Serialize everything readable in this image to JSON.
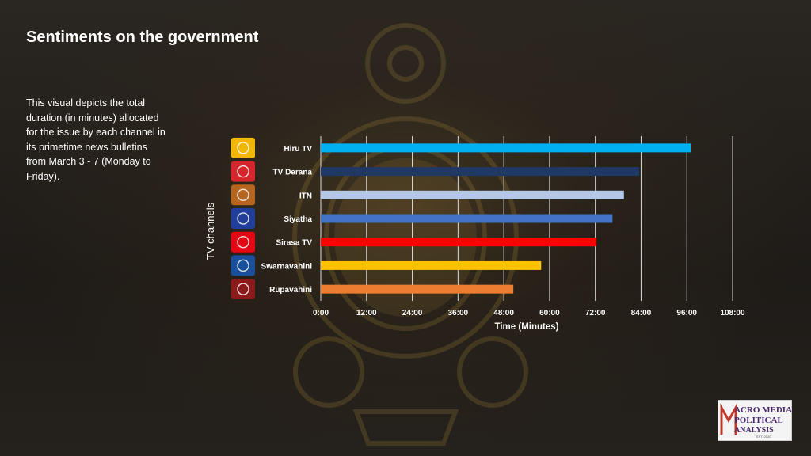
{
  "slide": {
    "title": "Sentiments on the government",
    "description": "This visual depicts the total duration  (in minutes) allocated for the issue by each channel in its primetime news bulletins from March 3 - 7 (Monday to Friday).",
    "logo": {
      "line1": "ACRO MEDIA",
      "line2": "POLITICAL",
      "line3": "ANALYSIS",
      "est": "EST. 2020"
    }
  },
  "channel_logos": [
    {
      "name": "hiru-tv-logo-icon",
      "color": "#f2b705"
    },
    {
      "name": "tv-derana-logo-icon",
      "color": "#d7262b"
    },
    {
      "name": "itn-logo-icon",
      "color": "#b5651d"
    },
    {
      "name": "siyatha-logo-icon",
      "color": "#1f3f9a"
    },
    {
      "name": "sirasa-tv-logo-icon",
      "color": "#e30613"
    },
    {
      "name": "swarnavahini-logo-icon",
      "color": "#1a4f9a"
    },
    {
      "name": "rupavahini-logo-icon",
      "color": "#8b1a1a"
    }
  ],
  "chart_data": {
    "type": "bar",
    "orientation": "horizontal",
    "categories": [
      "Hiru TV",
      "TV Derana",
      "ITN",
      "Siyatha",
      "Sirasa TV",
      "Swarnavahini",
      "Rupavahini"
    ],
    "values_minutes": [
      97,
      83.5,
      79.5,
      76.5,
      72.3,
      57.8,
      50.5
    ],
    "colors": [
      "#00b0f0",
      "#1f3864",
      "#b4c7e7",
      "#4472c4",
      "#ff0000",
      "#ffc000",
      "#ed7d31"
    ],
    "xlabel": "Time (Minutes)",
    "ylabel": "TV channels",
    "xlim": [
      0,
      108
    ],
    "xticks": [
      0,
      12,
      24,
      36,
      48,
      60,
      72,
      84,
      96,
      108
    ],
    "xtick_labels": [
      "0:00",
      "12:00",
      "24:00",
      "36:00",
      "48:00",
      "60:00",
      "72:00",
      "84:00",
      "96:00",
      "108:00"
    ],
    "grid": "vertical"
  }
}
